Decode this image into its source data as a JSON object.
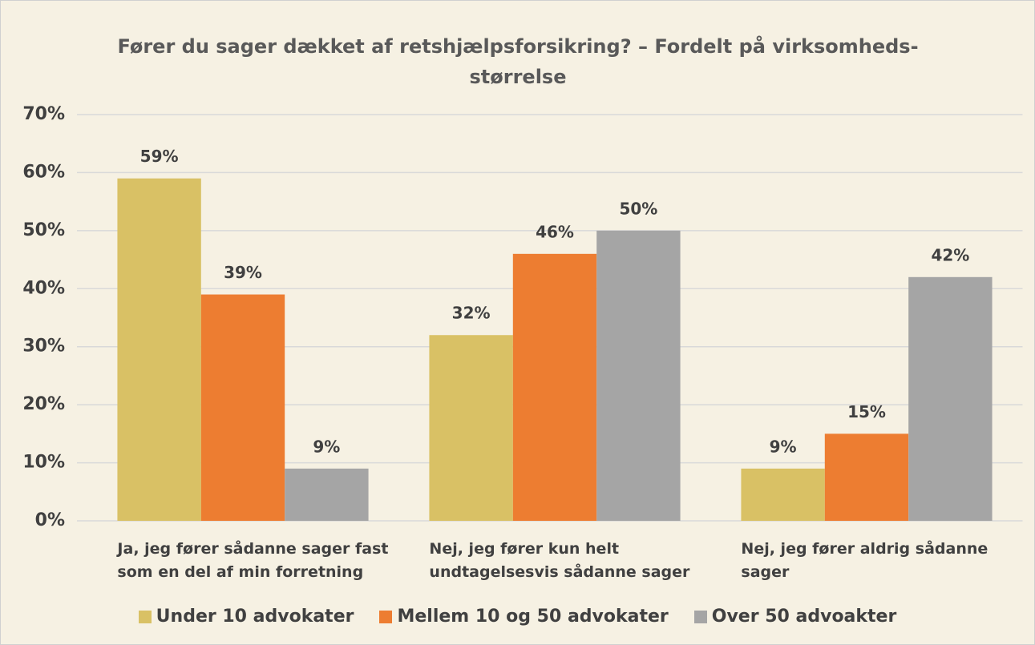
{
  "chart_data": {
    "type": "bar",
    "title": "Fører du sager dækket af retshjælpsforsikring? – Fordelt på virksomheds-størrelse",
    "categories": [
      "Ja, jeg fører sådanne sager fast som en del af min forretning",
      "Nej, jeg fører kun helt undtagelsesvis sådanne sager",
      "Nej, jeg fører aldrig sådanne sager"
    ],
    "series": [
      {
        "name": "Under 10 advokater",
        "color": "#d9c165",
        "values": [
          59,
          32,
          9
        ],
        "value_labels": [
          "59%",
          "32%",
          "9%"
        ]
      },
      {
        "name": "Mellem 10 og 50 advokater",
        "color": "#ed7d31",
        "values": [
          39,
          46,
          15
        ],
        "value_labels": [
          "39%",
          "46%",
          "15%"
        ]
      },
      {
        "name": "Over 50 advoakter",
        "color": "#a5a5a5",
        "values": [
          9,
          50,
          42
        ],
        "value_labels": [
          "9%",
          "50%",
          "42%"
        ]
      }
    ],
    "ylim": [
      0,
      70
    ],
    "yticks": [
      {
        "value": 0,
        "label": "0%"
      },
      {
        "value": 10,
        "label": "10%"
      },
      {
        "value": 20,
        "label": "20%"
      },
      {
        "value": 30,
        "label": "30%"
      },
      {
        "value": 40,
        "label": "40%"
      },
      {
        "value": 50,
        "label": "50%"
      },
      {
        "value": 60,
        "label": "60%"
      },
      {
        "value": 70,
        "label": "70%"
      }
    ],
    "grid": true,
    "legend": "bottom"
  }
}
